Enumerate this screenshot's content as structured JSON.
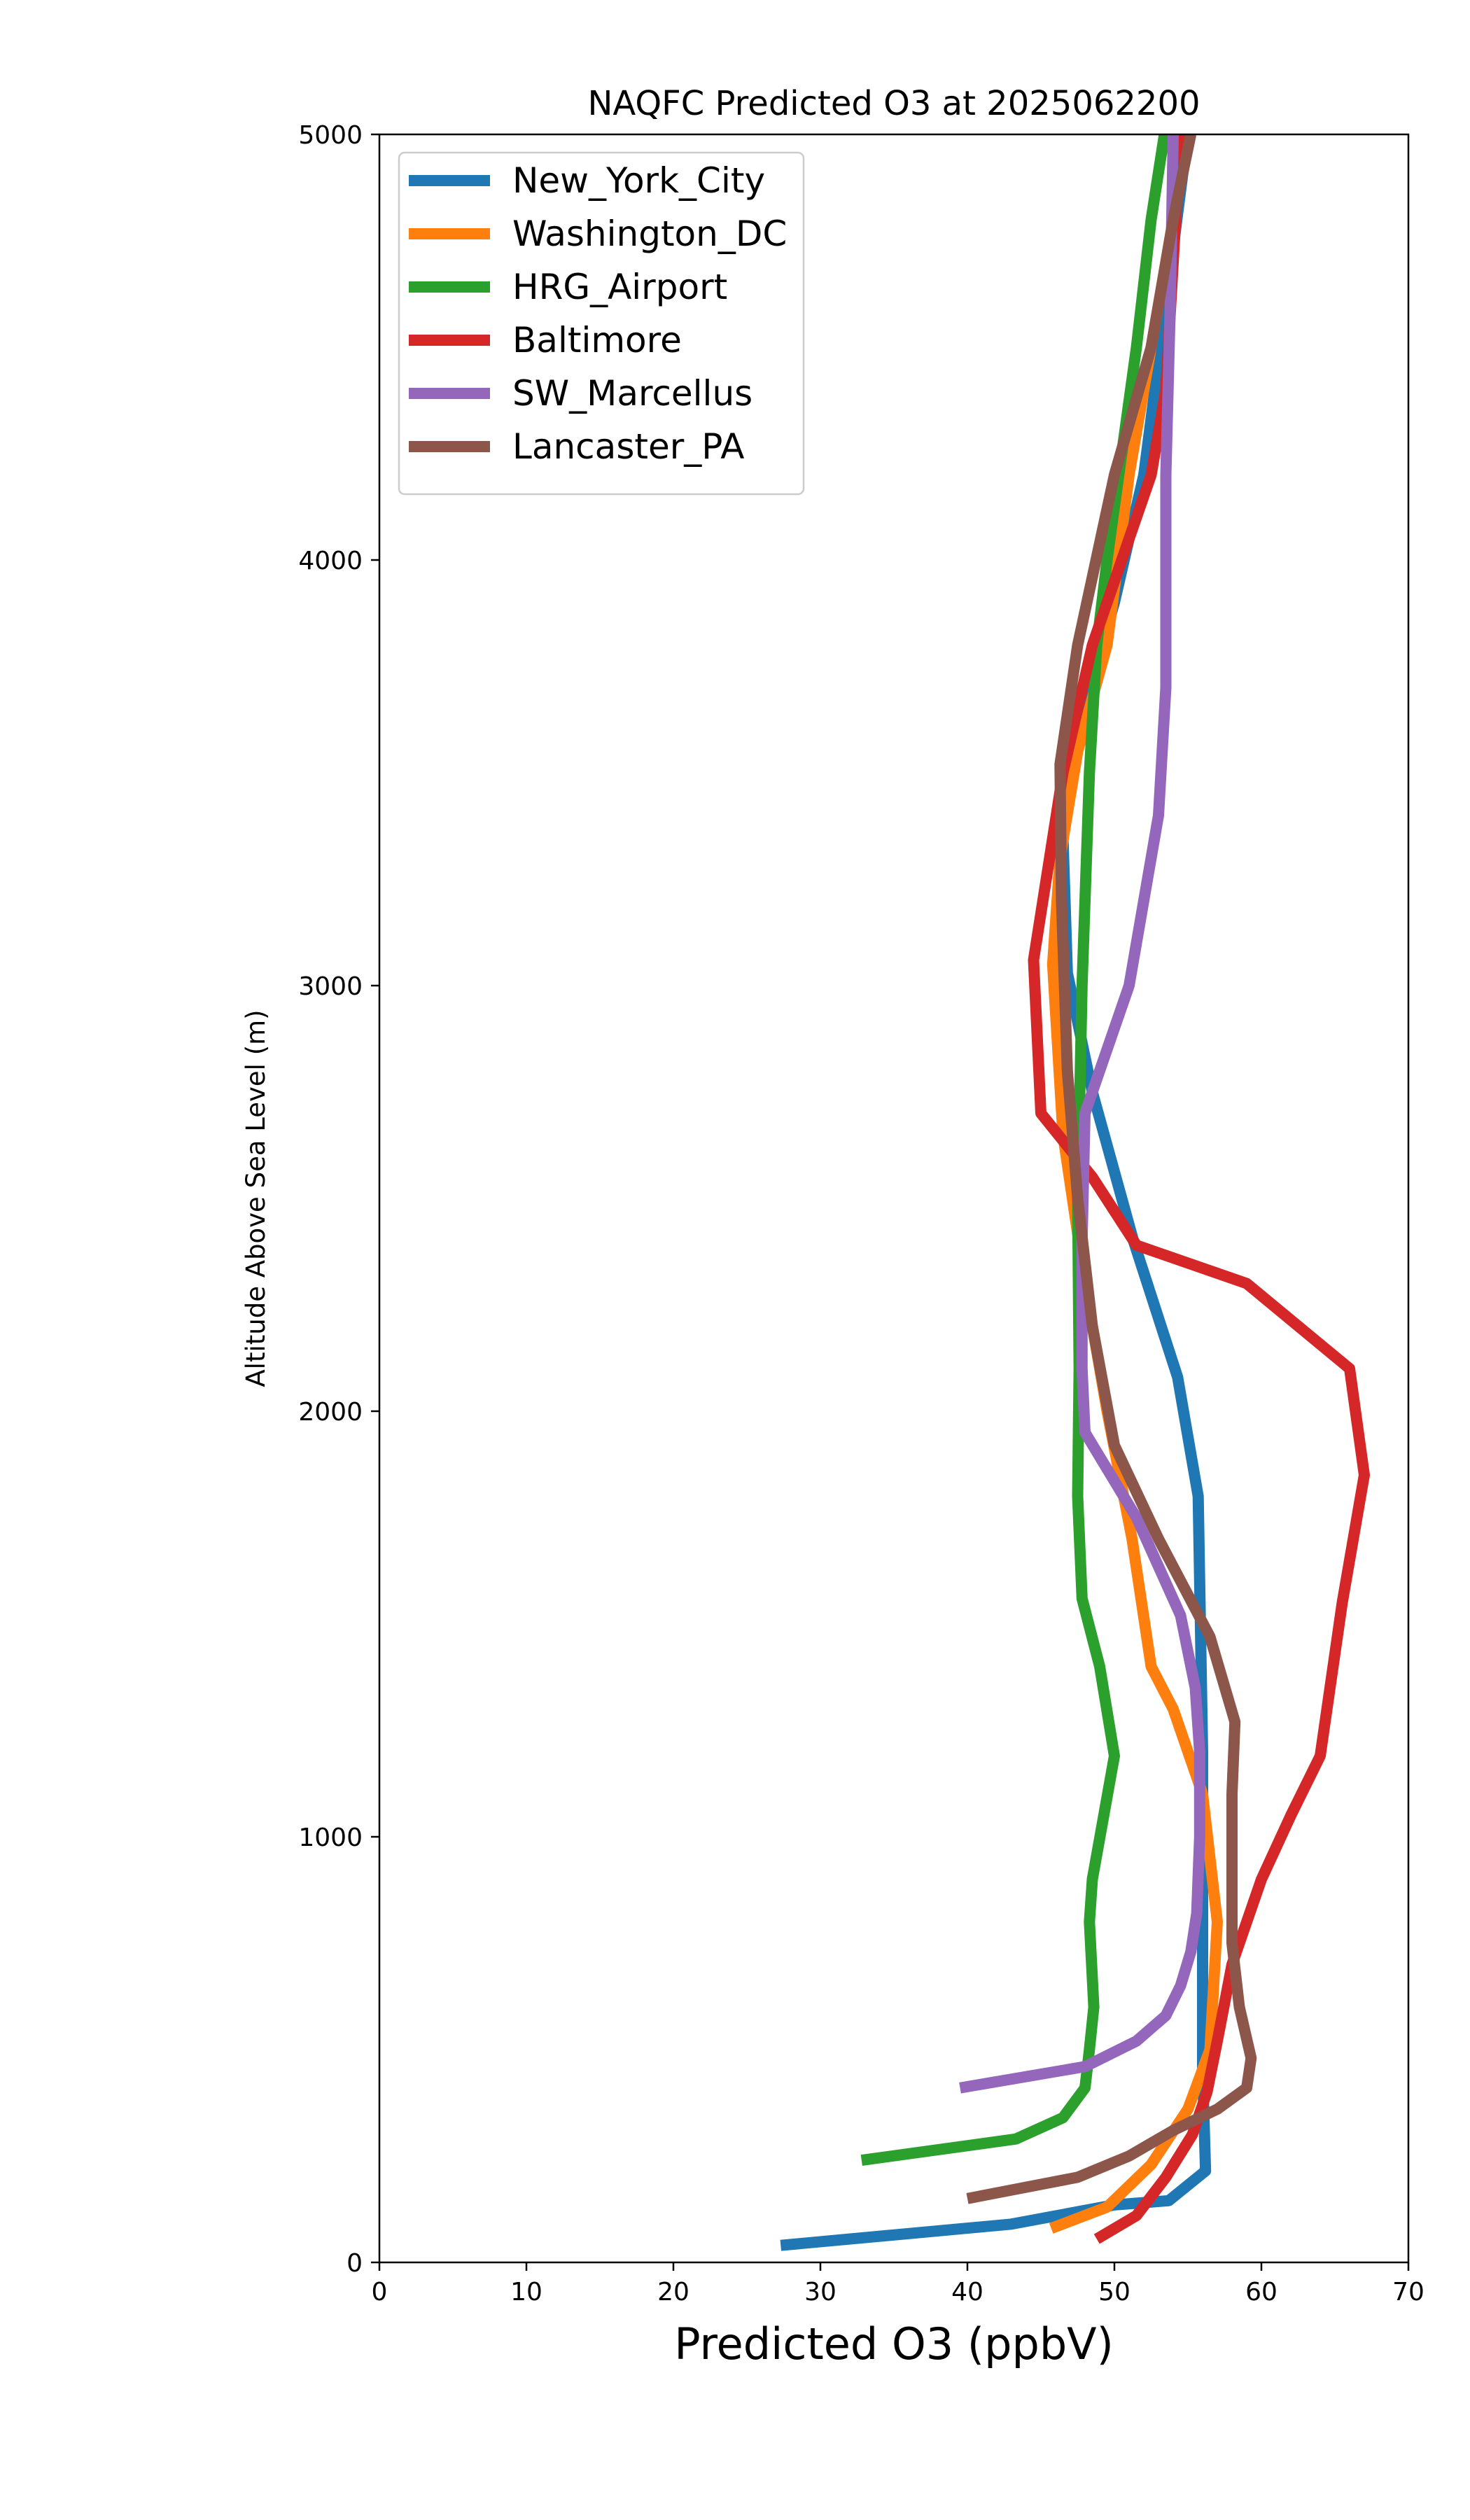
{
  "chart_data": {
    "type": "line",
    "title": "NAQFC Predicted O3 at 2025062200",
    "xlabel": "Predicted O3 (ppbV)",
    "ylabel": "Altitude Above Sea Level (m)",
    "xlim": [
      0,
      70
    ],
    "ylim": [
      0,
      5000
    ],
    "xticks": [
      0,
      10,
      20,
      30,
      40,
      50,
      60,
      70
    ],
    "yticks": [
      0,
      1000,
      2000,
      3000,
      4000,
      5000
    ],
    "legend_position": "upper-left",
    "grid": false,
    "series": [
      {
        "name": "New_York_City",
        "color": "#1f77b4",
        "points": [
          [
            27.3,
            40
          ],
          [
            43,
            90
          ],
          [
            50,
            135
          ],
          [
            53.7,
            145
          ],
          [
            56.2,
            215
          ],
          [
            56,
            450
          ],
          [
            56,
            800
          ],
          [
            56,
            1200
          ],
          [
            55.7,
            1800
          ],
          [
            54.3,
            2080
          ],
          [
            51.3,
            2400
          ],
          [
            48.5,
            2750
          ],
          [
            46.8,
            3030
          ],
          [
            46.5,
            3350
          ],
          [
            47.5,
            3600
          ],
          [
            50,
            3900
          ],
          [
            52,
            4200
          ],
          [
            53.5,
            4600
          ],
          [
            55,
            5000
          ]
        ]
      },
      {
        "name": "Washington_DC",
        "color": "#ff7f0e",
        "points": [
          [
            45.7,
            80
          ],
          [
            49.5,
            130
          ],
          [
            52.5,
            230
          ],
          [
            55,
            360
          ],
          [
            56.5,
            500
          ],
          [
            57,
            800
          ],
          [
            56,
            1100
          ],
          [
            54,
            1300
          ],
          [
            52.5,
            1400
          ],
          [
            51.2,
            1700
          ],
          [
            49.5,
            2000
          ],
          [
            48,
            2300
          ],
          [
            46.5,
            2650
          ],
          [
            45.8,
            3050
          ],
          [
            46.3,
            3300
          ],
          [
            47.5,
            3550
          ],
          [
            49.5,
            3800
          ],
          [
            51,
            4200
          ],
          [
            52.5,
            4500
          ],
          [
            54,
            4800
          ],
          [
            55,
            5000
          ]
        ]
      },
      {
        "name": "HRG_Airport",
        "color": "#2ca02c",
        "points": [
          [
            32.8,
            240
          ],
          [
            43.3,
            290
          ],
          [
            46.5,
            340
          ],
          [
            48,
            410
          ],
          [
            48.3,
            500
          ],
          [
            48.6,
            600
          ],
          [
            48.3,
            800
          ],
          [
            48.5,
            900
          ],
          [
            50,
            1190
          ],
          [
            49,
            1400
          ],
          [
            47.8,
            1560
          ],
          [
            47.5,
            1800
          ],
          [
            47.6,
            2100
          ],
          [
            47.5,
            2500
          ],
          [
            47.8,
            3000
          ],
          [
            48.3,
            3500
          ],
          [
            48.8,
            3800
          ],
          [
            49.5,
            4000
          ],
          [
            51.5,
            4500
          ],
          [
            52.5,
            4800
          ],
          [
            53.4,
            5000
          ]
        ]
      },
      {
        "name": "Baltimore",
        "color": "#d62728",
        "points": [
          [
            48.8,
            55
          ],
          [
            51.5,
            110
          ],
          [
            53.5,
            200
          ],
          [
            55.3,
            300
          ],
          [
            56.3,
            400
          ],
          [
            57,
            520
          ],
          [
            58,
            700
          ],
          [
            60,
            900
          ],
          [
            62,
            1050
          ],
          [
            64,
            1190
          ],
          [
            65.5,
            1550
          ],
          [
            67,
            1850
          ],
          [
            66,
            2100
          ],
          [
            59,
            2300
          ],
          [
            51.5,
            2390
          ],
          [
            48.5,
            2550
          ],
          [
            45,
            2700
          ],
          [
            44.5,
            3060
          ],
          [
            46.5,
            3500
          ],
          [
            48.5,
            3800
          ],
          [
            52.5,
            4200
          ],
          [
            53.5,
            4400
          ],
          [
            54,
            4700
          ],
          [
            54.5,
            5000
          ]
        ]
      },
      {
        "name": "SW_Marcellus",
        "color": "#9467bd",
        "points": [
          [
            39.5,
            410
          ],
          [
            48,
            460
          ],
          [
            51.5,
            520
          ],
          [
            53.5,
            580
          ],
          [
            54.5,
            650
          ],
          [
            55.2,
            730
          ],
          [
            55.6,
            820
          ],
          [
            55.8,
            1000
          ],
          [
            55.8,
            1200
          ],
          [
            55.5,
            1350
          ],
          [
            54.5,
            1520
          ],
          [
            51.5,
            1750
          ],
          [
            48,
            1950
          ],
          [
            47.8,
            2100
          ],
          [
            47.8,
            2400
          ],
          [
            48,
            2700
          ],
          [
            51,
            3000
          ],
          [
            53,
            3400
          ],
          [
            53.5,
            3700
          ],
          [
            53.5,
            4200
          ],
          [
            53.8,
            4600
          ],
          [
            54,
            5000
          ]
        ]
      },
      {
        "name": "Lancaster_PA",
        "color": "#8c564b",
        "points": [
          [
            40,
            150
          ],
          [
            47.5,
            200
          ],
          [
            51,
            250
          ],
          [
            54,
            310
          ],
          [
            57,
            360
          ],
          [
            59,
            410
          ],
          [
            59.3,
            480
          ],
          [
            58.5,
            600
          ],
          [
            58,
            750
          ],
          [
            58,
            1100
          ],
          [
            58.2,
            1270
          ],
          [
            56.5,
            1470
          ],
          [
            53,
            1700
          ],
          [
            50,
            1920
          ],
          [
            48.5,
            2200
          ],
          [
            47.5,
            2500
          ],
          [
            46.8,
            2800
          ],
          [
            46.4,
            3200
          ],
          [
            46.3,
            3520
          ],
          [
            47.5,
            3800
          ],
          [
            50,
            4200
          ],
          [
            52.5,
            4500
          ],
          [
            54,
            4800
          ],
          [
            55.2,
            5000
          ]
        ]
      }
    ]
  }
}
